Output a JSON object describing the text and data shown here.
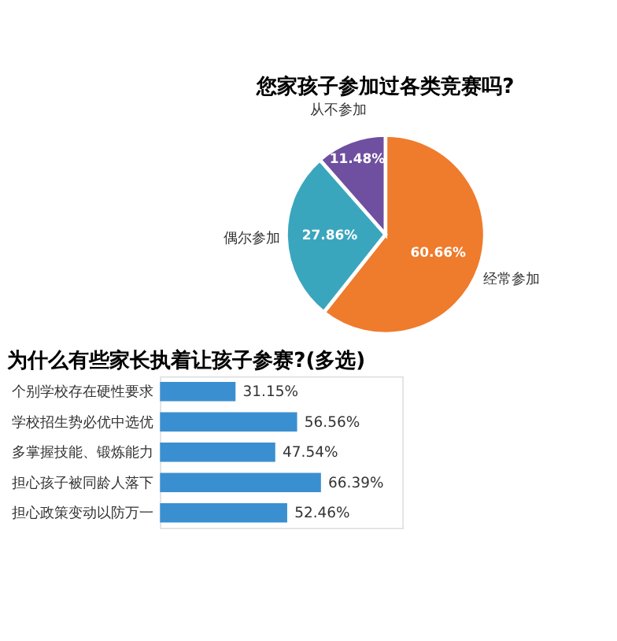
{
  "chart_data": [
    {
      "type": "pie",
      "title": "您家孩子参加过各类竞赛吗?",
      "categories": [
        "经常参加",
        "偶尔参加",
        "从不参加"
      ],
      "values": [
        60.66,
        27.86,
        11.48
      ],
      "colors": [
        "#ef7b2c",
        "#3aa6bd",
        "#6f4f9f"
      ],
      "value_labels": [
        "60.66%",
        "27.86%",
        "11.48%"
      ],
      "legend": false
    },
    {
      "type": "bar",
      "orientation": "horizontal",
      "title": "为什么有些家长执着让孩子参赛?(多选)",
      "categories": [
        "个别学校存在硬性要求",
        "学校招生势必优中选优",
        "多掌握技能、锻炼能力",
        "担心孩子被同龄人落下",
        "担心政策变动以防万一"
      ],
      "values": [
        31.15,
        56.56,
        47.54,
        66.39,
        52.46
      ],
      "color": "#3a8fd0",
      "value_labels": [
        "31.15%",
        "56.56%",
        "47.54%",
        "66.39%",
        "52.46%"
      ],
      "xlim": [
        0,
        100
      ],
      "tick_labels": "y",
      "grid": false,
      "legend": false
    }
  ]
}
